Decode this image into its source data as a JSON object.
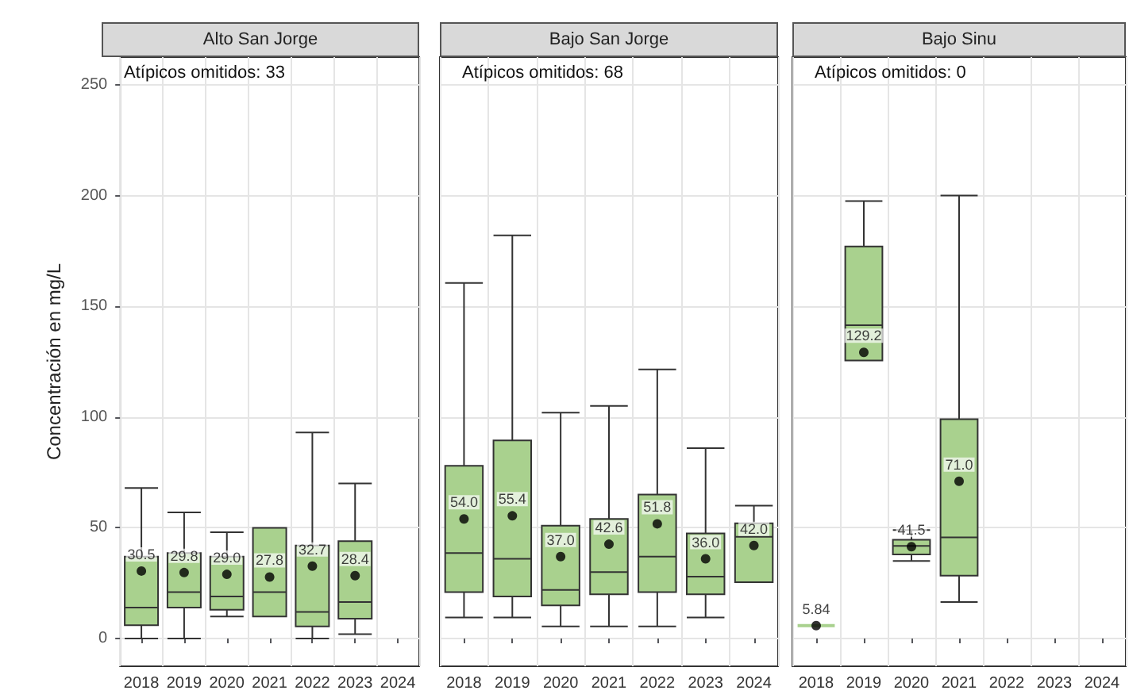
{
  "chart_data": [
    {
      "type": "box",
      "title": "Alto San Jorge",
      "ylabel": "Concentración en mg/L",
      "annotations": [
        "Atípicos omitidos: 33"
      ],
      "color": "#a9d18e",
      "grid": true,
      "categories": [
        "2018",
        "2019",
        "2020",
        "2021",
        "2022",
        "2023",
        "2024"
      ],
      "boxes": [
        {
          "low": 0,
          "q1": 6,
          "median": 14,
          "q3": 37,
          "high": 68,
          "mean": 30.5
        },
        {
          "low": 0,
          "q1": 14,
          "median": 21,
          "q3": 38.6,
          "high": 57,
          "mean": 29.8
        },
        {
          "low": 10,
          "q1": 13,
          "median": 19,
          "q3": 37,
          "high": 48,
          "mean": 29
        },
        {
          "low": 10,
          "q1": 10,
          "median": 21,
          "q3": 50,
          "high": 50,
          "mean": 27.8
        },
        {
          "low": 0,
          "q1": 5.5,
          "median": 12,
          "q3": 42,
          "high": 93,
          "mean": 32.7
        },
        {
          "low": 2,
          "q1": 9,
          "median": 16.5,
          "q3": 44,
          "high": 70,
          "mean": 28.4
        },
        null
      ],
      "value_labels": [
        "30.5",
        "29.8",
        "29.0",
        "27.8",
        "32.7",
        "28.4",
        null
      ],
      "ylim": [
        -12.5,
        262.5
      ],
      "yticks": [
        0,
        50,
        100,
        150,
        200,
        250
      ]
    },
    {
      "type": "box",
      "title": "Bajo San Jorge",
      "annotations": [
        "Atípicos omitidos: 68"
      ],
      "color": "#a9d18e",
      "grid": true,
      "tick_labels": "x",
      "categories": [
        "2018",
        "2019",
        "2020",
        "2021",
        "2022",
        "2023",
        "2024"
      ],
      "boxes": [
        {
          "low": 9.5,
          "q1": 21,
          "median": 38.6,
          "q3": 78,
          "high": 160.5,
          "mean": 54
        },
        {
          "low": 9.5,
          "q1": 19,
          "median": 36,
          "q3": 89.5,
          "high": 182,
          "mean": 55.4
        },
        {
          "low": 5.5,
          "q1": 15,
          "median": 22,
          "q3": 51,
          "high": 102,
          "mean": 37
        },
        {
          "low": 5.5,
          "q1": 20,
          "median": 30,
          "q3": 54,
          "high": 105,
          "mean": 42.6
        },
        {
          "low": 5.5,
          "q1": 21,
          "median": 37,
          "q3": 65,
          "high": 121.5,
          "mean": 51.8
        },
        {
          "low": 9.5,
          "q1": 20,
          "median": 28,
          "q3": 47.5,
          "high": 86,
          "mean": 36
        },
        {
          "low": 25.5,
          "q1": 25.5,
          "median": 46,
          "q3": 52,
          "high": 60,
          "mean": 42
        }
      ],
      "value_labels": [
        "54.0",
        "55.4",
        "37.0",
        "42.6",
        "51.8",
        "36.0",
        "42.0"
      ],
      "ylim": [
        -12.5,
        262.5
      ],
      "yticks": [
        0,
        50,
        100,
        150,
        200,
        250
      ]
    },
    {
      "type": "box",
      "title": "Bajo Sinu",
      "annotations": [
        "Atípicos omitidos: 0"
      ],
      "color": "#a9d18e",
      "grid": true,
      "tick_labels": "x",
      "categories": [
        "2018",
        "2019",
        "2020",
        "2021",
        "2022",
        "2023",
        "2024"
      ],
      "boxes": [
        {
          "low": 5.84,
          "q1": 5.84,
          "median": 5.84,
          "q3": 5.84,
          "high": 5.84,
          "mean": 5.84
        },
        {
          "low": 125.5,
          "q1": 125.5,
          "median": 141.5,
          "q3": 177,
          "high": 197.5,
          "mean": 129.2
        },
        {
          "low": 35,
          "q1": 38,
          "median": 41.8,
          "q3": 44.6,
          "high": 49,
          "mean": 41.5
        },
        {
          "low": 16.5,
          "q1": 28.4,
          "median": 45.7,
          "q3": 99,
          "high": 200,
          "mean": 71
        },
        null,
        null,
        null
      ],
      "value_labels": [
        "5.84",
        "129.2",
        "41.5",
        "71.0",
        null,
        null,
        null
      ],
      "ylim": [
        -12.5,
        262.5
      ],
      "yticks": [
        0,
        50,
        100,
        150,
        200,
        250
      ]
    }
  ]
}
